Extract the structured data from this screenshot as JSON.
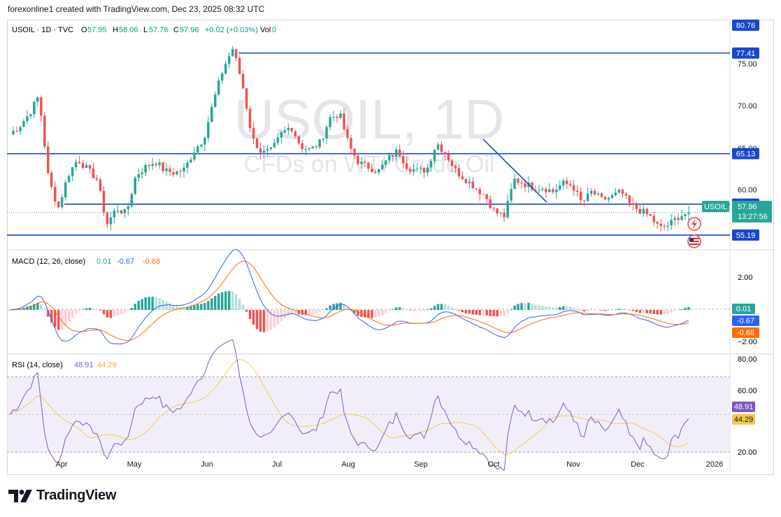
{
  "header": {
    "text": "forexonline1 created with TradingView.com, Dec 23, 2025 08:32 UTC"
  },
  "footer": {
    "brand": "TradingView"
  },
  "chart_data": {
    "type": "candlestick",
    "symbol_line": {
      "symbol": "USOIL · 1D · TVC",
      "o_label": "O",
      "o": "57.95",
      "h_label": "H",
      "h": "58.06",
      "l_label": "L",
      "l": "57.76",
      "c_label": "C",
      "c": "57.96",
      "change": "+0.02 (+0.03%)",
      "vol_label": "Vol",
      "vol": "0"
    },
    "watermark": {
      "line1": "USOIL, 1D",
      "line2": "CFDs on WTI Crude Oil"
    },
    "x_labels": [
      "Apr",
      "May",
      "Jun",
      "Jul",
      "Aug",
      "Sep",
      "Oct",
      "Nov",
      "Dec",
      "2026"
    ],
    "price_axis": {
      "ticks": [
        "75.00",
        "70.00",
        "65.00",
        "60.00"
      ],
      "ylim": [
        53.4,
        81.5
      ]
    },
    "price_series": [
      67.5,
      68.5,
      70.0,
      72.2,
      62.0,
      58.5,
      62.5,
      64.5,
      63.2,
      62.0,
      56.5,
      58.5,
      57.8,
      62.5,
      63.5,
      64.2,
      63.0,
      62.8,
      63.2,
      65.5,
      67.0,
      71.5,
      75.5,
      78.0,
      73.5,
      67.0,
      65.2,
      65.5,
      67.5,
      68.5,
      66.0,
      65.6,
      66.5,
      69.5,
      70.0,
      66.0,
      64.0,
      63.5,
      63.0,
      64.5,
      65.5,
      63.5,
      63.0,
      63.2,
      66.5,
      65.0,
      63.0,
      62.0,
      61.0,
      60.0,
      58.0,
      57.5,
      62.0,
      61.5,
      61.0,
      61.0,
      60.5,
      61.5,
      61.3,
      59.0,
      60.5,
      59.5,
      59.8,
      60.5,
      58.8,
      58.2,
      57.5,
      56.0,
      56.5,
      57.5,
      57.96
    ],
    "horizontal_levels": [
      {
        "value": 77.41,
        "label": "77.41"
      },
      {
        "value": 65.13,
        "label": "65.13"
      },
      {
        "value": 58.97,
        "label": "58.97"
      },
      {
        "value": 55.19,
        "label": "55.19"
      }
    ],
    "trendline": {
      "from": [
        "Sep 29",
        66.9
      ],
      "to": [
        "Oct 24",
        59.2
      ]
    },
    "top_label": "80.76",
    "last_price": {
      "symbol": "USOIL",
      "price": "57.96",
      "countdown": "13:27:56"
    },
    "macd": {
      "title": "MACD (12, 26, close)",
      "values": {
        "hist": "0.01",
        "macd": "-0.67",
        "signal": "-0.68"
      },
      "ticks": [
        "2.00",
        "−2.00"
      ],
      "ylim": [
        -2.6,
        3.6
      ]
    },
    "rsi": {
      "title": "RSI (14, close)",
      "values": {
        "rsi": "48.91",
        "ma": "44.29"
      },
      "ticks": [
        "80.00",
        "60.00",
        "20.00"
      ],
      "ylim": [
        19,
        81
      ],
      "bands": [
        70,
        50,
        30
      ]
    },
    "colors": {
      "up": "#26a69a",
      "down": "#ef5350",
      "level": "#1848cc",
      "macd_line": "#2962ff",
      "signal_line": "#ff6d00",
      "rsi_line": "#7e57c2",
      "rsi_ma": "#f7c948",
      "rsi_band": "#ede7f6"
    }
  }
}
